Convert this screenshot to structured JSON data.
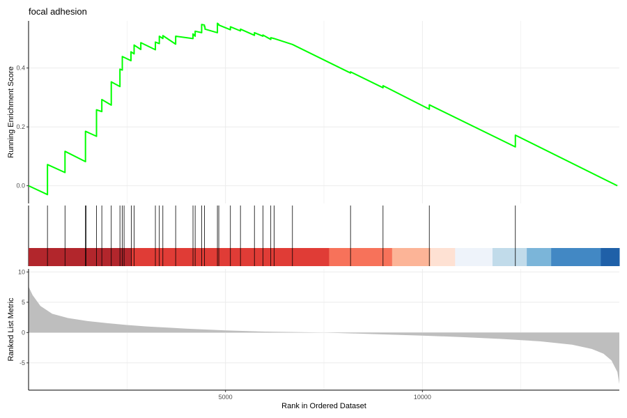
{
  "chart_data": {
    "type": "line",
    "title": "focal adhesion",
    "xlabel": "Rank in Ordered Dataset",
    "xlim": [
      0,
      15000
    ],
    "x_ticks": [
      5000,
      10000
    ],
    "x_tick_labels": [
      "5000",
      "10000"
    ],
    "panels": {
      "enrichment": {
        "ylabel": "Running Enrichment Score",
        "ylim": [
          -0.06,
          0.56
        ],
        "y_ticks": [
          0.0,
          0.2,
          0.4
        ],
        "y_tick_labels": [
          "0.0",
          "0.2",
          "0.4"
        ],
        "line_color": "#00ff00",
        "x": [
          0,
          480,
          480,
          925,
          925,
          1445,
          1445,
          1725,
          1725,
          1860,
          1860,
          2100,
          2100,
          2320,
          2320,
          2380,
          2380,
          2600,
          2600,
          2680,
          2680,
          2850,
          2850,
          3220,
          3220,
          3320,
          3320,
          3410,
          3410,
          3735,
          3735,
          4175,
          4175,
          4230,
          4230,
          4395,
          4395,
          4465,
          4465,
          4480,
          4480,
          4795,
          4795,
          4830,
          4830,
          5125,
          5125,
          5380,
          5380,
          5735,
          5735,
          5950,
          5950,
          6150,
          6150,
          6235,
          6235,
          6700,
          8175,
          8175,
          9000,
          9000,
          10175,
          10175,
          12360,
          12360,
          14950
        ],
        "y": [
          0.0,
          -0.03,
          0.072,
          0.045,
          0.117,
          0.082,
          0.185,
          0.168,
          0.258,
          0.252,
          0.293,
          0.274,
          0.353,
          0.337,
          0.396,
          0.393,
          0.439,
          0.425,
          0.455,
          0.448,
          0.478,
          0.463,
          0.486,
          0.462,
          0.488,
          0.483,
          0.508,
          0.5,
          0.51,
          0.481,
          0.508,
          0.5,
          0.516,
          0.508,
          0.525,
          0.52,
          0.548,
          0.546,
          0.54,
          0.54,
          0.532,
          0.52,
          0.552,
          0.548,
          0.546,
          0.53,
          0.54,
          0.526,
          0.532,
          0.511,
          0.52,
          0.508,
          0.512,
          0.497,
          0.503,
          0.5,
          0.5,
          0.48,
          0.383,
          0.387,
          0.333,
          0.34,
          0.26,
          0.275,
          0.132,
          0.172,
          0.0
        ]
      },
      "hits": [
        480,
        925,
        1445,
        1460,
        1725,
        1860,
        2100,
        2320,
        2380,
        2425,
        2610,
        2680,
        3220,
        3320,
        3410,
        3735,
        4175,
        4230,
        4395,
        4465,
        4795,
        4830,
        5125,
        5380,
        5735,
        5950,
        6150,
        6235,
        6700,
        8175,
        9000,
        10175,
        12360
      ],
      "heatmap": {
        "bands": [
          {
            "start": 0,
            "end": 2600,
            "color": "#b2262c"
          },
          {
            "start": 2600,
            "end": 7630,
            "color": "#e03c36"
          },
          {
            "start": 7630,
            "end": 9230,
            "color": "#f7725a"
          },
          {
            "start": 9230,
            "end": 10200,
            "color": "#fcb497"
          },
          {
            "start": 10200,
            "end": 10830,
            "color": "#fee1d3"
          },
          {
            "start": 10830,
            "end": 11780,
            "color": "#eef3fa"
          },
          {
            "start": 11780,
            "end": 12650,
            "color": "#c1dbea"
          },
          {
            "start": 12650,
            "end": 13270,
            "color": "#7bb5d9"
          },
          {
            "start": 13270,
            "end": 14530,
            "color": "#4288c4"
          },
          {
            "start": 14530,
            "end": 15000,
            "color": "#1f60a8"
          }
        ]
      },
      "ranked": {
        "ylabel": "Ranked List Metric",
        "ylim": [
          -9.5,
          10.5
        ],
        "y_ticks": [
          10,
          5,
          0,
          -5
        ],
        "y_tick_labels": [
          "10",
          "5",
          "0",
          "-5"
        ],
        "fill_color": "#bebebe",
        "x": [
          0,
          100,
          300,
          600,
          1000,
          1500,
          2000,
          2500,
          3000,
          4000,
          5000,
          6000,
          7000,
          7500,
          8000,
          9000,
          10000,
          11000,
          12000,
          13000,
          13800,
          14300,
          14600,
          14800,
          14950,
          15000
        ],
        "y": [
          7.6,
          6.2,
          4.4,
          3.1,
          2.4,
          1.9,
          1.55,
          1.25,
          1.0,
          0.65,
          0.35,
          0.15,
          0.05,
          0.0,
          -0.1,
          -0.3,
          -0.5,
          -0.75,
          -1.05,
          -1.45,
          -2.0,
          -2.7,
          -3.5,
          -4.6,
          -6.5,
          -8.5
        ]
      }
    }
  }
}
